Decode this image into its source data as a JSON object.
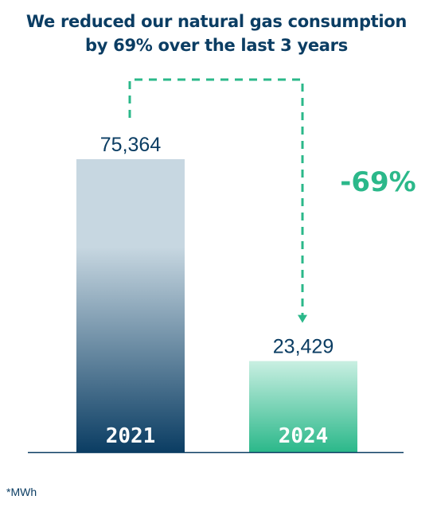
{
  "title_line1": "We reduced our natural gas consumption",
  "title_line2": "by 69% over the last 3 years",
  "footnote": "*MWh",
  "colors": {
    "title": "#0b3d63",
    "bar_2021_top": "#c7d7e1",
    "bar_2021_bottom": "#0b3d63",
    "bar_2024_top": "#c9efe2",
    "bar_2024_bottom": "#2bb88a",
    "change": "#2bb88a",
    "axis": "#0b3d63",
    "value_label": "#0b3d63"
  },
  "chart_data": {
    "type": "bar",
    "categories": [
      "2021",
      "2024"
    ],
    "values": [
      75364,
      23429
    ],
    "value_labels": [
      "75,364",
      "23,429"
    ],
    "change_label": "-69%",
    "unit": "*MWh",
    "title": "We reduced our natural gas consumption by 69% over the last 3 years"
  }
}
